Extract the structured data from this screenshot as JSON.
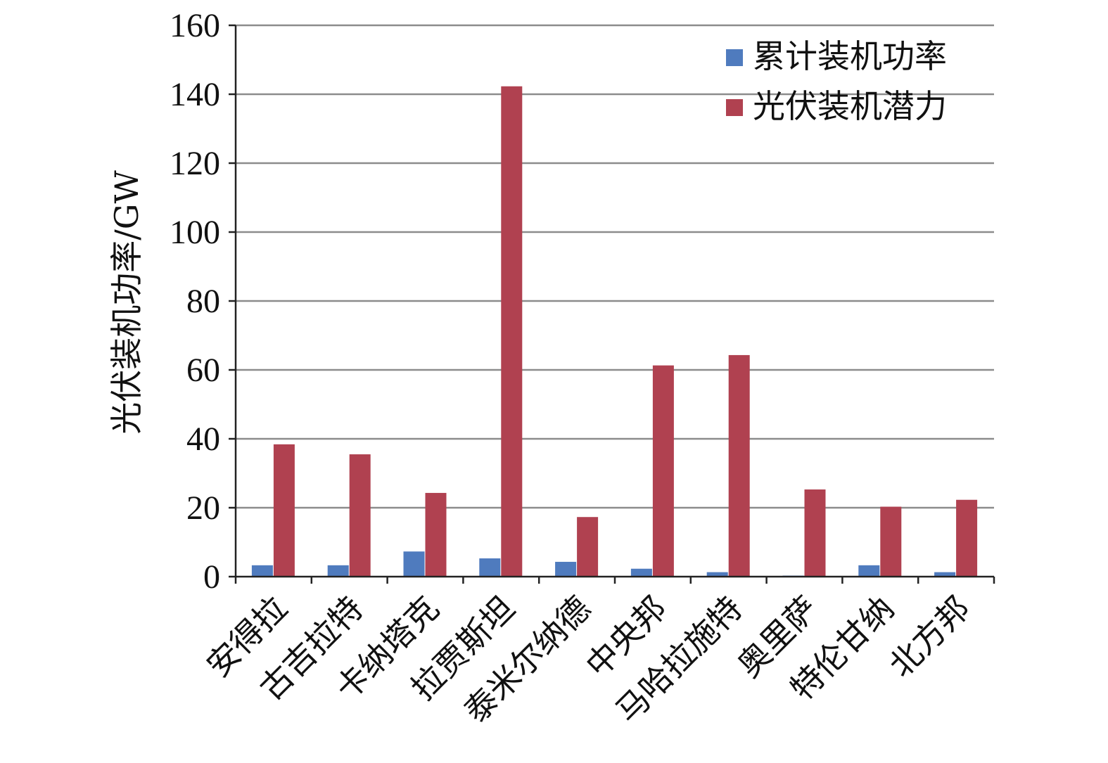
{
  "chart_data": {
    "type": "bar",
    "title": "",
    "xlabel": "",
    "ylabel": "光伏装机功率/GW",
    "ylim": [
      0,
      160
    ],
    "yticks": [
      0,
      20,
      40,
      60,
      80,
      100,
      120,
      140,
      160
    ],
    "grid": true,
    "legend_position": "top-right",
    "categories": [
      "安得拉",
      "古吉拉特",
      "卡纳塔克",
      "拉贾斯坦",
      "泰米尔纳德",
      "中央邦",
      "马哈拉施特",
      "奥里萨",
      "特伦甘纳",
      "北方邦"
    ],
    "series": [
      {
        "name": "累计装机功率",
        "color": "#4F7BBE",
        "values": [
          3.3,
          3.3,
          7.3,
          5.3,
          4.3,
          2.3,
          1.3,
          0.3,
          3.3,
          1.3
        ]
      },
      {
        "name": "光伏装机潜力",
        "color": "#B04150",
        "values": [
          38.4,
          35.5,
          24.3,
          142.3,
          17.3,
          61.3,
          64.3,
          25.3,
          20.3,
          22.3
        ]
      }
    ]
  }
}
